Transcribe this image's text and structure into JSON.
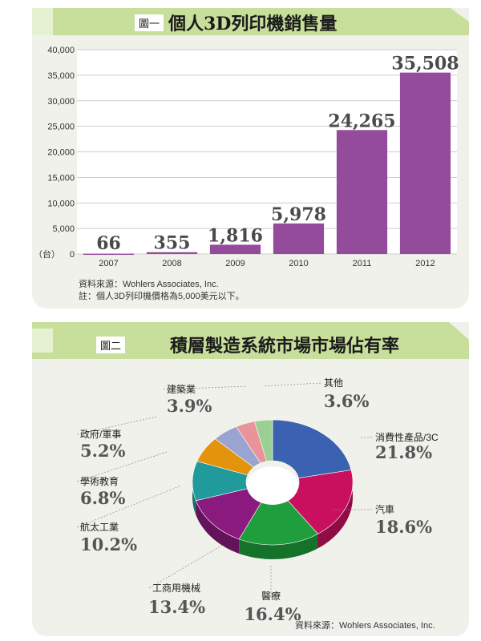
{
  "chart1": {
    "fig_tag": "圖一",
    "title": "個人3D列印機銷售量",
    "unit_label": "（台）",
    "source": "資料來源：Wohlers Associates, Inc.",
    "footnote": "註：個人3D列印機價格為5,000美元以下。",
    "colors": {
      "bar": "#954b9c",
      "header": "#c8df9c"
    },
    "chart_data": {
      "type": "bar",
      "categories": [
        "2007",
        "2008",
        "2009",
        "2010",
        "2011",
        "2012"
      ],
      "values": [
        66,
        355,
        1816,
        5978,
        24265,
        35508
      ],
      "value_labels": [
        "66",
        "355",
        "1,816",
        "5,978",
        "24,265",
        "35,508"
      ],
      "ylim": [
        0,
        40000
      ],
      "yticks": [
        "0",
        "5,000",
        "10,000",
        "15,000",
        "20,000",
        "25,000",
        "30,000",
        "35,000",
        "40,000"
      ],
      "grid": true
    }
  },
  "chart2": {
    "fig_tag": "圖二",
    "title": "積層製造系統市場市場佔有率",
    "source": "資料來源：Wohlers Associates, Inc.",
    "chart_data": {
      "type": "pie",
      "slices": [
        {
          "name": "消費性產品/3C",
          "value": 21.8,
          "label": "21.8%",
          "color": "#3a62b0"
        },
        {
          "name": "汽車",
          "value": 18.6,
          "label": "18.6%",
          "color": "#c8105e"
        },
        {
          "name": "醫療",
          "value": 16.4,
          "label": "16.4%",
          "color": "#1e9e3c"
        },
        {
          "name": "工商用機械",
          "value": 13.4,
          "label": "13.4%",
          "color": "#8a1a7e"
        },
        {
          "name": "航太工業",
          "value": 10.2,
          "label": "10.2%",
          "color": "#209a9a"
        },
        {
          "name": "學術教育",
          "value": 6.8,
          "label": "6.8%",
          "color": "#e3930c"
        },
        {
          "name": "政府/軍事",
          "value": 5.2,
          "label": "5.2%",
          "color": "#9aa4d0"
        },
        {
          "name": "建築業",
          "value": 3.9,
          "label": "3.9%",
          "color": "#e8949a"
        },
        {
          "name": "其他",
          "value": 3.6,
          "label": "3.6%",
          "color": "#9ccf94"
        }
      ]
    }
  }
}
